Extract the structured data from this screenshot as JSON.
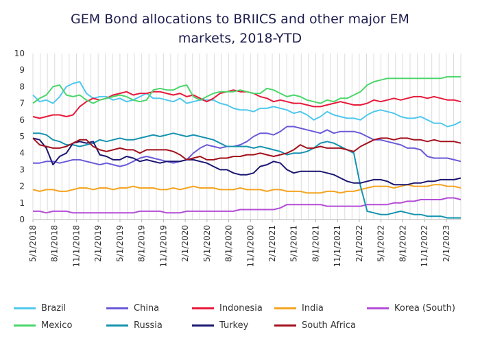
{
  "title_line1": "GEM Bond allocations to BRIICS and other major EM",
  "title_line2": "markets, 2018-YTD",
  "chart_data": {
    "type": "line",
    "title": "GEM Bond allocations to BRIICS and other major EM markets, 2018-YTD",
    "xlabel": "",
    "ylabel": "",
    "ylim": [
      0,
      10
    ],
    "yticks": [
      0,
      1,
      2,
      3,
      4,
      5,
      6,
      7,
      8,
      9,
      10
    ],
    "xticks": [
      "5/1/2018",
      "8/1/2018",
      "11/1/2018",
      "2/1/2019",
      "5/1/2019",
      "8/1/2019",
      "11/1/2019",
      "2/1/2020",
      "5/1/2020",
      "8/1/2020",
      "11/1/2020",
      "2/1/2021",
      "5/1/2021",
      "8/1/2021",
      "11/1/2021",
      "2/1/2022",
      "5/1/2022",
      "8/1/2022",
      "11/1/2022",
      "2/1/2023"
    ],
    "x_start": "5/1/2018",
    "x_end": "4/1/2023",
    "grid": "vertical",
    "legend_position": "bottom",
    "series": [
      {
        "name": "Brazil",
        "color": "#4fc8ee",
        "values": [
          7.5,
          7.1,
          7.2,
          7.0,
          7.4,
          8.0,
          8.2,
          8.3,
          7.6,
          7.3,
          7.4,
          7.4,
          7.2,
          7.3,
          7.1,
          7.2,
          7.4,
          7.6,
          7.3,
          7.3,
          7.2,
          7.1,
          7.3,
          7.0,
          7.1,
          7.2,
          7.2,
          7.2,
          7.0,
          6.9,
          6.7,
          6.6,
          6.6,
          6.5,
          6.7,
          6.7,
          6.8,
          6.7,
          6.6,
          6.4,
          6.5,
          6.3,
          6.0,
          6.2,
          6.5,
          6.3,
          6.2,
          6.1,
          6.1,
          6.0,
          6.3,
          6.5,
          6.6,
          6.5,
          6.4,
          6.2,
          6.1,
          6.1,
          6.2,
          6.0,
          5.8,
          5.8,
          5.6,
          5.7,
          5.9
        ]
      },
      {
        "name": "China",
        "color": "#6a5ad8",
        "values": [
          3.4,
          3.4,
          3.5,
          3.5,
          3.4,
          3.5,
          3.6,
          3.6,
          3.5,
          3.4,
          3.3,
          3.4,
          3.3,
          3.2,
          3.3,
          3.5,
          3.7,
          3.8,
          3.7,
          3.6,
          3.5,
          3.4,
          3.5,
          3.6,
          4.0,
          4.3,
          4.5,
          4.4,
          4.3,
          4.4,
          4.4,
          4.5,
          4.7,
          5.0,
          5.2,
          5.2,
          5.1,
          5.3,
          5.6,
          5.6,
          5.5,
          5.4,
          5.3,
          5.2,
          5.4,
          5.2,
          5.3,
          5.3,
          5.3,
          5.2,
          5.0,
          4.8,
          4.8,
          4.7,
          4.6,
          4.5,
          4.3,
          4.3,
          4.2,
          3.8,
          3.7,
          3.7,
          3.7,
          3.6,
          3.5
        ]
      },
      {
        "name": "Indonesia",
        "color": "#e8193a",
        "values": [
          6.2,
          6.1,
          6.2,
          6.3,
          6.3,
          6.2,
          6.3,
          6.8,
          7.1,
          7.3,
          7.2,
          7.3,
          7.5,
          7.6,
          7.7,
          7.5,
          7.6,
          7.6,
          7.7,
          7.7,
          7.6,
          7.5,
          7.6,
          7.4,
          7.5,
          7.3,
          7.1,
          7.3,
          7.6,
          7.7,
          7.8,
          7.7,
          7.7,
          7.6,
          7.4,
          7.3,
          7.1,
          7.2,
          7.1,
          7.0,
          7.0,
          6.9,
          6.8,
          6.8,
          6.9,
          7.0,
          7.1,
          7.0,
          6.9,
          6.9,
          7.0,
          7.2,
          7.1,
          7.2,
          7.3,
          7.2,
          7.3,
          7.4,
          7.4,
          7.3,
          7.4,
          7.3,
          7.2,
          7.2,
          7.1
        ]
      },
      {
        "name": "India",
        "color": "#f5a420",
        "values": [
          1.8,
          1.7,
          1.8,
          1.8,
          1.7,
          1.7,
          1.8,
          1.9,
          1.9,
          1.8,
          1.9,
          1.9,
          1.8,
          1.9,
          1.9,
          2.0,
          1.9,
          1.9,
          1.9,
          1.8,
          1.8,
          1.9,
          1.8,
          1.9,
          2.0,
          1.9,
          1.9,
          1.9,
          1.8,
          1.8,
          1.8,
          1.9,
          1.8,
          1.8,
          1.8,
          1.7,
          1.8,
          1.8,
          1.7,
          1.7,
          1.7,
          1.6,
          1.6,
          1.6,
          1.7,
          1.7,
          1.6,
          1.7,
          1.7,
          1.8,
          1.9,
          2.0,
          2.0,
          2.0,
          1.9,
          2.0,
          2.1,
          2.0,
          2.0,
          2.0,
          2.1,
          2.1,
          2.0,
          2.0,
          1.9
        ]
      },
      {
        "name": "Korea (South)",
        "color": "#b44cd6",
        "values": [
          0.5,
          0.5,
          0.4,
          0.5,
          0.5,
          0.5,
          0.4,
          0.4,
          0.4,
          0.4,
          0.4,
          0.4,
          0.4,
          0.4,
          0.4,
          0.4,
          0.5,
          0.5,
          0.5,
          0.5,
          0.4,
          0.4,
          0.4,
          0.5,
          0.5,
          0.5,
          0.5,
          0.5,
          0.5,
          0.5,
          0.5,
          0.6,
          0.6,
          0.6,
          0.6,
          0.6,
          0.6,
          0.7,
          0.9,
          0.9,
          0.9,
          0.9,
          0.9,
          0.9,
          0.8,
          0.8,
          0.8,
          0.8,
          0.8,
          0.8,
          0.9,
          0.9,
          0.9,
          0.9,
          1.0,
          1.0,
          1.1,
          1.1,
          1.2,
          1.2,
          1.2,
          1.2,
          1.3,
          1.3,
          1.2
        ]
      },
      {
        "name": "Mexico",
        "color": "#4bd66b",
        "values": [
          7.0,
          7.3,
          7.5,
          8.0,
          8.1,
          7.5,
          7.4,
          7.5,
          7.2,
          7.0,
          7.2,
          7.3,
          7.4,
          7.5,
          7.4,
          7.2,
          7.1,
          7.2,
          7.8,
          7.9,
          7.8,
          7.8,
          8.0,
          8.1,
          7.4,
          7.2,
          7.4,
          7.6,
          7.7,
          7.7,
          7.7,
          7.8,
          7.7,
          7.6,
          7.6,
          7.9,
          7.8,
          7.6,
          7.4,
          7.5,
          7.4,
          7.2,
          7.1,
          7.0,
          7.2,
          7.1,
          7.3,
          7.3,
          7.5,
          7.7,
          8.1,
          8.3,
          8.4,
          8.5,
          8.5,
          8.5,
          8.5,
          8.5,
          8.5,
          8.5,
          8.5,
          8.5,
          8.6,
          8.6,
          8.6
        ]
      },
      {
        "name": "Russia",
        "color": "#1493b0",
        "values": [
          5.2,
          5.2,
          5.1,
          4.8,
          4.7,
          4.5,
          4.5,
          4.4,
          4.5,
          4.6,
          4.8,
          4.7,
          4.8,
          4.9,
          4.8,
          4.8,
          4.9,
          5.0,
          5.1,
          5.0,
          5.1,
          5.2,
          5.1,
          5.0,
          5.1,
          5.0,
          4.9,
          4.8,
          4.6,
          4.4,
          4.4,
          4.4,
          4.4,
          4.3,
          4.4,
          4.3,
          4.2,
          4.1,
          3.9,
          4.0,
          4.0,
          4.1,
          4.3,
          4.6,
          4.7,
          4.6,
          4.4,
          4.2,
          4.0,
          2.0,
          0.5,
          0.4,
          0.3,
          0.3,
          0.4,
          0.5,
          0.4,
          0.3,
          0.3,
          0.2,
          0.2,
          0.2,
          0.1,
          0.1,
          0.1
        ]
      },
      {
        "name": "Turkey",
        "color": "#1a1670",
        "values": [
          4.9,
          4.8,
          4.3,
          3.3,
          3.8,
          4.0,
          4.6,
          4.7,
          4.6,
          4.7,
          3.9,
          3.8,
          3.6,
          3.6,
          3.8,
          3.7,
          3.5,
          3.6,
          3.5,
          3.4,
          3.5,
          3.5,
          3.5,
          3.6,
          3.6,
          3.5,
          3.4,
          3.2,
          3.0,
          3.0,
          2.8,
          2.7,
          2.7,
          2.8,
          3.2,
          3.3,
          3.5,
          3.4,
          3.0,
          2.8,
          2.9,
          2.9,
          2.9,
          2.9,
          2.8,
          2.7,
          2.5,
          2.3,
          2.2,
          2.2,
          2.3,
          2.4,
          2.4,
          2.3,
          2.1,
          2.1,
          2.1,
          2.2,
          2.2,
          2.3,
          2.3,
          2.4,
          2.4,
          2.4,
          2.5
        ]
      },
      {
        "name": "South Africa",
        "color": "#a3111c",
        "values": [
          4.9,
          4.5,
          4.4,
          4.3,
          4.3,
          4.4,
          4.6,
          4.8,
          4.8,
          4.4,
          4.2,
          4.1,
          4.2,
          4.3,
          4.2,
          4.2,
          4.0,
          4.2,
          4.2,
          4.2,
          4.2,
          4.1,
          3.9,
          3.6,
          3.7,
          3.8,
          3.6,
          3.6,
          3.7,
          3.7,
          3.8,
          3.8,
          3.9,
          3.9,
          4.0,
          3.9,
          3.8,
          3.9,
          4.0,
          4.2,
          4.5,
          4.3,
          4.3,
          4.4,
          4.3,
          4.3,
          4.3,
          4.2,
          4.1,
          4.4,
          4.6,
          4.8,
          4.9,
          4.9,
          4.8,
          4.9,
          4.9,
          4.8,
          4.8,
          4.7,
          4.8,
          4.7,
          4.7,
          4.7,
          4.6
        ]
      }
    ]
  }
}
